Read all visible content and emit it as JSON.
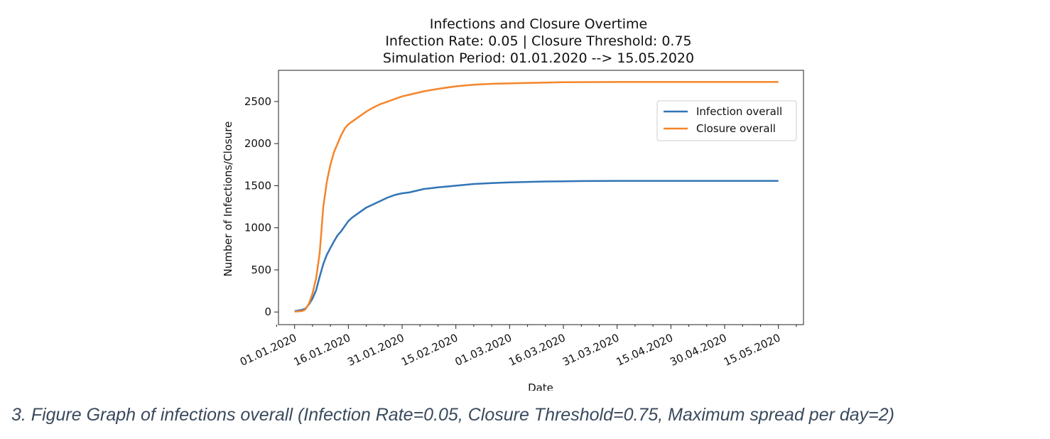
{
  "chart_data": {
    "type": "line",
    "title": "Infections and Closure Overtime",
    "subtitle_lines": [
      "Infection Rate: 0.05 | Closure Threshold: 0.75",
      "Simulation Period: 01.01.2020 --> 15.05.2020"
    ],
    "xlabel": "Date",
    "ylabel": "Number of Infections/Closure",
    "x_tick_labels": [
      "01.01.2020",
      "16.01.2020",
      "31.01.2020",
      "15.02.2020",
      "01.03.2020",
      "16.03.2020",
      "31.03.2020",
      "15.04.2020",
      "30.04.2020",
      "15.05.2020"
    ],
    "x_tick_days": [
      0,
      15,
      30,
      45,
      60,
      75,
      90,
      105,
      120,
      135
    ],
    "xlim": [
      -4.5,
      142
    ],
    "ylim": [
      -150,
      2870
    ],
    "y_ticks": [
      0,
      500,
      1000,
      1500,
      2000,
      2500
    ],
    "legend_position": "upper-right",
    "series": [
      {
        "name": "Infection overall",
        "color": "#3274b5",
        "x": [
          0,
          2,
          3,
          4,
          5,
          6,
          7,
          8,
          9,
          10,
          11,
          12,
          13,
          14,
          15,
          16,
          18,
          20,
          22,
          24,
          26,
          28,
          30,
          32,
          34,
          36,
          40,
          45,
          50,
          55,
          60,
          65,
          70,
          75,
          80,
          85,
          90,
          100,
          110,
          120,
          135
        ],
        "y": [
          10,
          25,
          40,
          90,
          160,
          260,
          420,
          570,
          680,
          760,
          840,
          910,
          960,
          1020,
          1080,
          1120,
          1180,
          1240,
          1280,
          1320,
          1360,
          1390,
          1410,
          1420,
          1440,
          1460,
          1480,
          1500,
          1520,
          1530,
          1540,
          1545,
          1550,
          1552,
          1555,
          1556,
          1557,
          1557,
          1557,
          1557,
          1557
        ]
      },
      {
        "name": "Closure overall",
        "color": "#f5852a",
        "x": [
          0,
          2,
          3,
          4,
          5,
          6,
          7,
          8,
          9,
          10,
          11,
          12,
          13,
          14,
          15,
          16,
          18,
          20,
          22,
          24,
          26,
          28,
          30,
          32,
          34,
          36,
          40,
          45,
          50,
          55,
          60,
          65,
          70,
          75,
          80,
          85,
          90,
          100,
          110,
          120,
          135
        ],
        "y": [
          5,
          10,
          30,
          100,
          220,
          400,
          700,
          1250,
          1550,
          1750,
          1900,
          2000,
          2100,
          2180,
          2230,
          2260,
          2320,
          2380,
          2430,
          2470,
          2500,
          2530,
          2560,
          2580,
          2600,
          2620,
          2650,
          2680,
          2700,
          2710,
          2715,
          2720,
          2725,
          2728,
          2730,
          2731,
          2732,
          2732,
          2732,
          2732,
          2732
        ]
      }
    ]
  },
  "caption": "3. Figure Graph of infections overall (Infection Rate=0.05, Closure Threshold=0.75, Maximum spread per day=2)"
}
